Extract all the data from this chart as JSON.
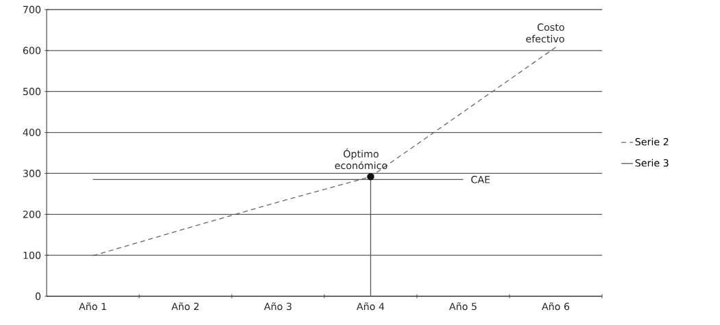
{
  "chart_data": {
    "type": "line",
    "categories": [
      "Año 1",
      "Año 2",
      "Año 3",
      "Año 4",
      "Año 5",
      "Año 6"
    ],
    "ylim": [
      0,
      700
    ],
    "yticks": [
      0,
      100,
      200,
      300,
      400,
      500,
      600,
      700
    ],
    "grid": "y",
    "legend": "right",
    "series": [
      {
        "name": "Serie 2",
        "color": "#666666",
        "line_style": "dashed",
        "values": [
          99,
          165,
          230,
          292,
          450,
          608
        ]
      },
      {
        "name": "Serie 3",
        "color": "#555555",
        "line_style": "solid",
        "values": [
          285,
          285,
          285,
          285,
          285,
          null
        ]
      },
      {
        "color": "#555555",
        "line_style": "solid",
        "x": [
          "Año 4",
          "Año 4"
        ],
        "values": [
          0,
          292
        ]
      },
      {
        "type": "scatter",
        "color": "#111111",
        "marker": "circle",
        "x": [
          "Año 4"
        ],
        "values": [
          292
        ]
      }
    ],
    "annotations": [
      {
        "text": "Costo efectivo",
        "x": "Año 6",
        "y": 608
      },
      {
        "text": "Óptimo económico",
        "x": "Año 4",
        "y": 292
      },
      {
        "text": "CAE",
        "x": "Año 5",
        "y": 285
      }
    ]
  }
}
